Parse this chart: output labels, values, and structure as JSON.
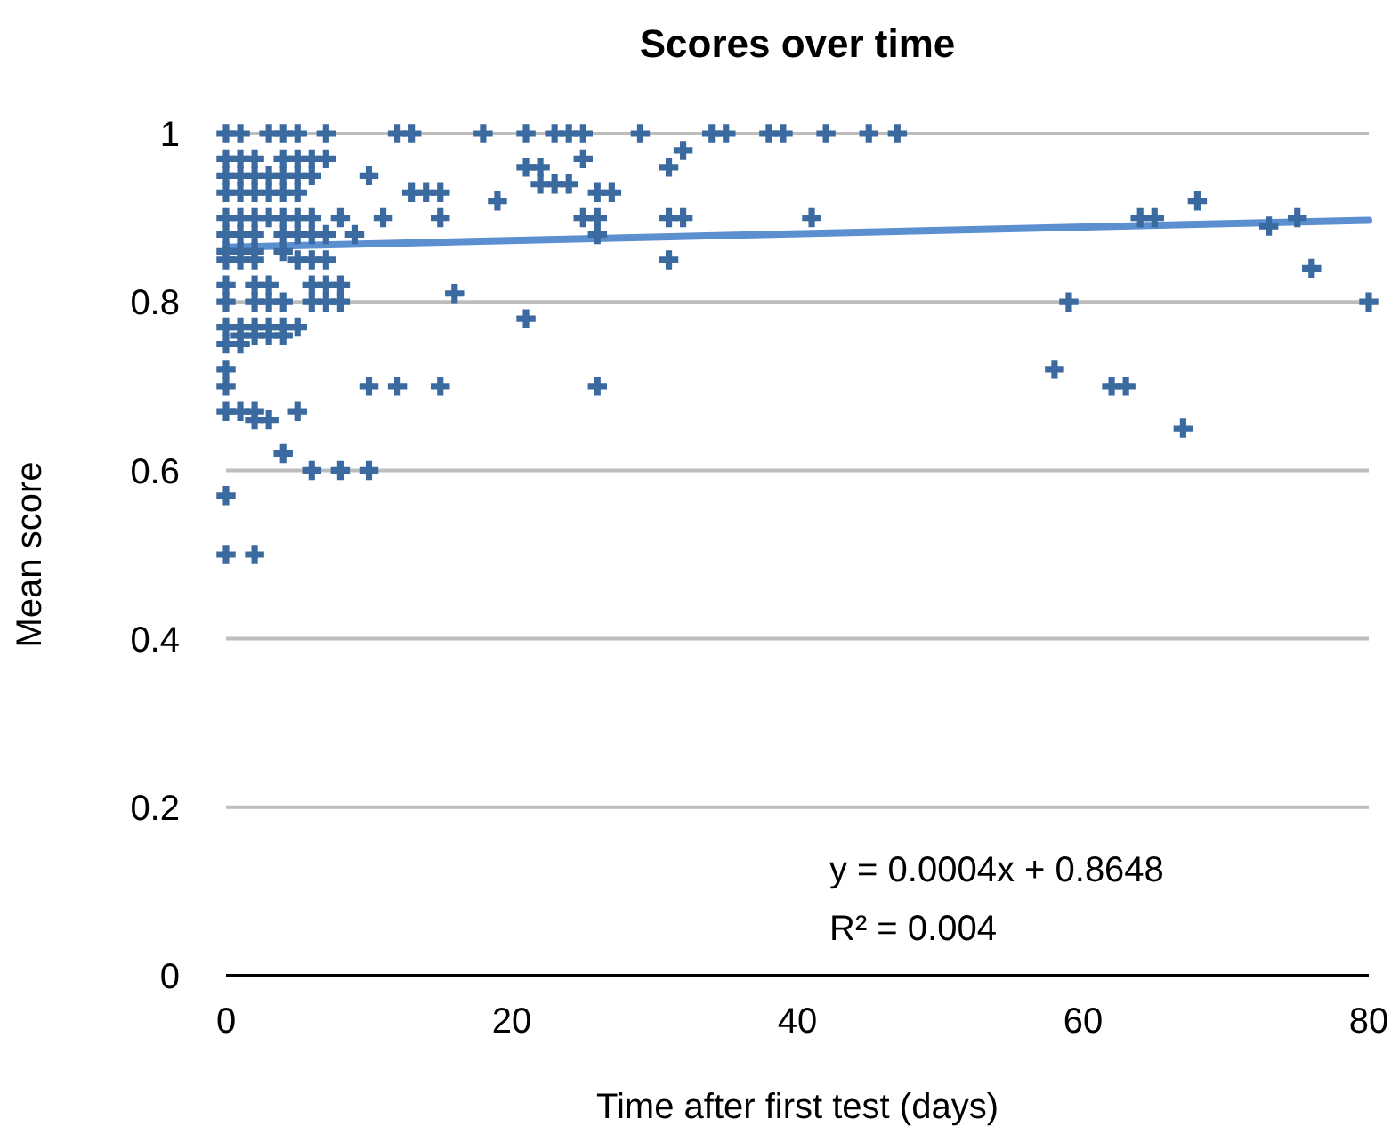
{
  "chart_data": {
    "type": "scatter",
    "title": "Scores over time",
    "xlabel": "Time after first test (days)",
    "ylabel": "Mean score",
    "xlim": [
      0,
      80
    ],
    "xticks": [
      0,
      20,
      40,
      60,
      80
    ],
    "ylim": [
      0,
      1
    ],
    "yticks": [
      0,
      0.2,
      0.4,
      0.6,
      0.8,
      1
    ],
    "grid": "y",
    "legend": false,
    "annotations": [
      "y = 0.0004x + 0.8648",
      "R² = 0.004"
    ],
    "series": [
      {
        "marker": "cross",
        "color": "#3a6aa0",
        "x": [
          0,
          1,
          3,
          4,
          5,
          7,
          12,
          13,
          18,
          21,
          23,
          24,
          25,
          29,
          34,
          35,
          38,
          39,
          42,
          45,
          47,
          0,
          1,
          2,
          4,
          5,
          6,
          7,
          0,
          1,
          2,
          3,
          4,
          5,
          6,
          10,
          21,
          22,
          25,
          31,
          32,
          0,
          1,
          2,
          3,
          4,
          5,
          13,
          14,
          15,
          19,
          22,
          23,
          24,
          26,
          27,
          0,
          1,
          2,
          3,
          4,
          5,
          6,
          8,
          11,
          15,
          25,
          26,
          31,
          32,
          41,
          0,
          1,
          2,
          4,
          5,
          6,
          7,
          9,
          26,
          0,
          1,
          2,
          4,
          0,
          1,
          2,
          5,
          6,
          7,
          31,
          0,
          2,
          3,
          6,
          7,
          8,
          16,
          0,
          2,
          3,
          4,
          6,
          7,
          8,
          59,
          80,
          0,
          1,
          2,
          3,
          4,
          5,
          21,
          1,
          2,
          3,
          4,
          0,
          1,
          0,
          58,
          0,
          10,
          12,
          15,
          26,
          62,
          63,
          0,
          1,
          2,
          5,
          2,
          3,
          4,
          6,
          8,
          10,
          0,
          0,
          2,
          64,
          65,
          68,
          73,
          75,
          76,
          67
        ],
        "values": [
          1,
          1,
          1,
          1,
          1,
          1,
          1,
          1,
          1,
          1,
          1,
          1,
          1,
          1,
          1,
          1,
          1,
          1,
          1,
          1,
          1,
          0.97,
          0.97,
          0.97,
          0.97,
          0.97,
          0.97,
          0.97,
          0.95,
          0.95,
          0.95,
          0.95,
          0.95,
          0.95,
          0.95,
          0.95,
          0.96,
          0.96,
          0.97,
          0.96,
          0.98,
          0.93,
          0.93,
          0.93,
          0.93,
          0.93,
          0.93,
          0.93,
          0.93,
          0.93,
          0.92,
          0.94,
          0.94,
          0.94,
          0.93,
          0.93,
          0.9,
          0.9,
          0.9,
          0.9,
          0.9,
          0.9,
          0.9,
          0.9,
          0.9,
          0.9,
          0.9,
          0.9,
          0.9,
          0.9,
          0.9,
          0.88,
          0.88,
          0.88,
          0.88,
          0.88,
          0.88,
          0.88,
          0.88,
          0.88,
          0.86,
          0.86,
          0.86,
          0.86,
          0.85,
          0.85,
          0.85,
          0.85,
          0.85,
          0.85,
          0.85,
          0.82,
          0.82,
          0.82,
          0.82,
          0.82,
          0.82,
          0.81,
          0.8,
          0.8,
          0.8,
          0.8,
          0.8,
          0.8,
          0.8,
          0.8,
          0.8,
          0.77,
          0.77,
          0.77,
          0.77,
          0.77,
          0.77,
          0.78,
          0.76,
          0.76,
          0.76,
          0.76,
          0.75,
          0.75,
          0.72,
          0.72,
          0.7,
          0.7,
          0.7,
          0.7,
          0.7,
          0.7,
          0.7,
          0.67,
          0.67,
          0.67,
          0.67,
          0.66,
          0.66,
          0.62,
          0.6,
          0.6,
          0.6,
          0.57,
          0.5,
          0.5,
          0.9,
          0.9,
          0.92,
          0.89,
          0.9,
          0.84,
          0.65
        ]
      },
      {
        "type": "line",
        "color": "#5b8fd0",
        "x": [
          0,
          80
        ],
        "values": [
          0.865,
          0.897
        ]
      }
    ]
  }
}
